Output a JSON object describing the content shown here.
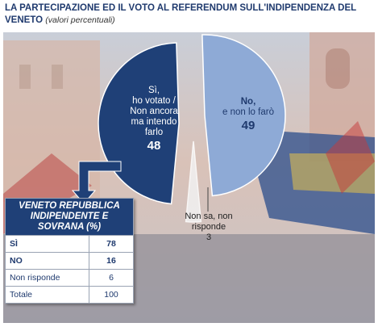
{
  "header": {
    "title": "LA PARTECIPAZIONE  ED IL VOTO AL REFERENDUM SULL'INDIPENDENZA DEL VENETO",
    "subtitle": "(valori percentuali)"
  },
  "chart_data": {
    "type": "pie",
    "title": "LA PARTECIPAZIONE  ED IL VOTO AL REFERENDUM SULL'INDIPENDENZA DEL VENETO",
    "slices": [
      {
        "label": "Sì, ho votato / Non ancora ma intendo farlo",
        "value": 48,
        "color": "#1f4077"
      },
      {
        "label": "No, e non lo farò",
        "value": 49,
        "color": "#8eaad6"
      },
      {
        "label": "Non sa, non risponde",
        "value": 3,
        "color": "#f2f2f2"
      }
    ],
    "labels": {
      "yes_lines": [
        "Sì,",
        "ho votato  /",
        "Non ancora",
        "ma intendo",
        "farlo"
      ],
      "yes_value": "48",
      "no_lines": [
        "No,",
        "e non lo farò"
      ],
      "no_value": "49",
      "ns_lines": [
        "Non sa, non",
        "risponde"
      ],
      "ns_value": "3"
    }
  },
  "table": {
    "header": "VENETO REPUBBLICA INDIPENDENTE E SOVRANA (%)",
    "rows": [
      {
        "label": "SÌ",
        "value": "78"
      },
      {
        "label": "NO",
        "value": "16"
      },
      {
        "label": "Non risponde",
        "value": "6"
      },
      {
        "label": "Totale",
        "value": "100"
      }
    ]
  }
}
